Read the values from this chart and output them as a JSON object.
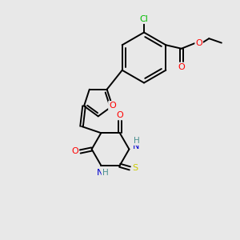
{
  "bg_color": "#e8e8e8",
  "atom_colors": {
    "C": "#000000",
    "N": "#0000cd",
    "O": "#ff0000",
    "S": "#cccc00",
    "Cl": "#00bb00",
    "H": "#4a9090"
  },
  "bond_color": "#000000",
  "figsize": [
    3.0,
    3.0
  ],
  "dpi": 100
}
